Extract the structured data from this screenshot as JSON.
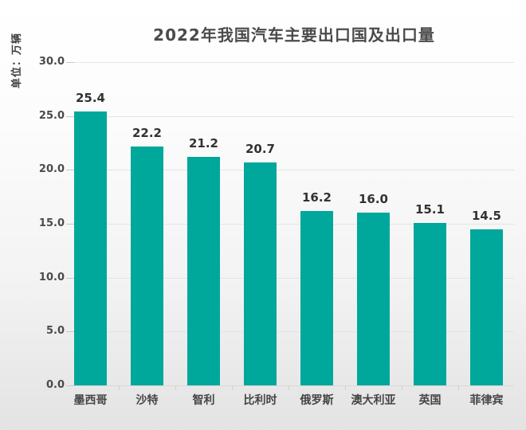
{
  "chart_data": {
    "type": "bar",
    "title": "2022年我国汽车主要出口国及出口量",
    "ylabel": "单位：万辆",
    "xlabel": "",
    "categories": [
      "墨西哥",
      "沙特",
      "智利",
      "比利时",
      "俄罗斯",
      "澳大利亚",
      "英国",
      "菲律宾"
    ],
    "values": [
      25.4,
      22.2,
      21.2,
      20.7,
      16.2,
      16.0,
      15.1,
      14.5
    ],
    "value_labels": [
      "25.4",
      "22.2",
      "21.2",
      "20.7",
      "16.2",
      "16.0",
      "15.1",
      "14.5"
    ],
    "ylim": [
      0,
      30
    ],
    "yticks": [
      0,
      5,
      10,
      15,
      20,
      25,
      30
    ],
    "ytick_labels": [
      "0.0",
      "5.0",
      "10.0",
      "15.0",
      "20.0",
      "25.0",
      "30.0"
    ],
    "grid": true,
    "legend": false,
    "bar_color": "#00a79b",
    "title_color": "#4b4b4b",
    "label_color": "#454545",
    "gridline_color": "#e4e4e4",
    "background_top": "#ffffff",
    "background_bottom": "#e3e3e3"
  }
}
